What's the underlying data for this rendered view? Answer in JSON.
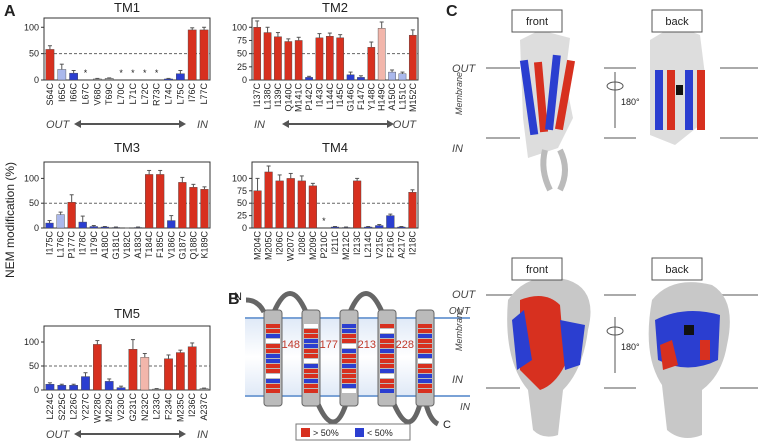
{
  "panel_labels": [
    "A",
    "B",
    "C"
  ],
  "shared_ylabel": "NEM modification (%)",
  "chart_data": [
    {
      "type": "bar",
      "title": "TM1",
      "categories": [
        "S64C",
        "I65C",
        "I66C",
        "L67C",
        "V68C",
        "T69C",
        "L70C",
        "L71C",
        "L72C",
        "R73C",
        "L74C",
        "L75C",
        "I76C",
        "L77C"
      ],
      "values": [
        58,
        20,
        13,
        null,
        2,
        3,
        null,
        null,
        null,
        null,
        2,
        12,
        95,
        95
      ],
      "errors": [
        7,
        10,
        5,
        null,
        1,
        1,
        null,
        null,
        null,
        null,
        1,
        6,
        4,
        5
      ],
      "colors": [
        "#d7301f",
        "#aab8ec",
        "#2b3ed0",
        "#999999",
        "#999999",
        "#999999",
        "#999999",
        "#999999",
        "#999999",
        "#999999",
        "#2b3ed0",
        "#2b3ed0",
        "#d7301f",
        "#d7301f"
      ],
      "notes": [
        null,
        null,
        null,
        "*",
        null,
        null,
        "*",
        "*",
        "*",
        "*",
        null,
        null,
        null,
        null
      ],
      "ylim": [
        0,
        110
      ],
      "yticks": [
        0,
        50,
        100
      ],
      "refline": 50,
      "direction": [
        "OUT",
        "IN"
      ]
    },
    {
      "type": "bar",
      "title": "TM2",
      "categories": [
        "I137C",
        "L138C",
        "I139C",
        "Q140C",
        "M141C",
        "P142C",
        "I143C",
        "L144C",
        "I145C",
        "G146C",
        "F147C",
        "Y148C",
        "H149C",
        "A150C",
        "L151C",
        "M152C"
      ],
      "values": [
        100,
        90,
        82,
        73,
        75,
        5,
        80,
        83,
        80,
        10,
        5,
        62,
        98,
        15,
        12,
        85
      ],
      "errors": [
        12,
        10,
        8,
        5,
        6,
        2,
        8,
        6,
        6,
        5,
        3,
        10,
        12,
        4,
        3,
        10
      ],
      "colors": [
        "#d7301f",
        "#d7301f",
        "#d7301f",
        "#d7301f",
        "#d7301f",
        "#2b3ed0",
        "#d7301f",
        "#d7301f",
        "#d7301f",
        "#2b3ed0",
        "#2b3ed0",
        "#d7301f",
        "#f2b6ab",
        "#aab8ec",
        "#aab8ec",
        "#d7301f"
      ],
      "ylim": [
        0,
        110
      ],
      "yticks": [
        0,
        25,
        50,
        75,
        100
      ],
      "refline": 50,
      "direction": [
        "IN",
        "OUT"
      ]
    },
    {
      "type": "bar",
      "title": "TM3",
      "categories": [
        "I175C",
        "L176C",
        "P177C",
        "I178C",
        "I179C",
        "A180C",
        "G181C",
        "V182C",
        "A183C",
        "T184C",
        "F185C",
        "V186C",
        "G187C",
        "Q188C",
        "K189C"
      ],
      "values": [
        10,
        27,
        52,
        12,
        3,
        2,
        1,
        0,
        1,
        108,
        108,
        15,
        92,
        82,
        78
      ],
      "errors": [
        5,
        5,
        15,
        12,
        2,
        1,
        1,
        0,
        1,
        8,
        8,
        10,
        10,
        6,
        5
      ],
      "colors": [
        "#2b3ed0",
        "#aab8ec",
        "#d7301f",
        "#2b3ed0",
        "#2b3ed0",
        "#2b3ed0",
        "#2b3ed0",
        "#2b3ed0",
        "#2b3ed0",
        "#d7301f",
        "#d7301f",
        "#2b3ed0",
        "#d7301f",
        "#d7301f",
        "#d7301f"
      ],
      "ylim": [
        0,
        125
      ],
      "yticks": [
        0,
        50,
        100
      ],
      "refline": 50
    },
    {
      "type": "bar",
      "title": "TM4",
      "categories": [
        "M204C",
        "M205C",
        "I206C",
        "W207C",
        "I208C",
        "M209C",
        "P210C",
        "I211C",
        "M212C",
        "I213C",
        "L214C",
        "V215C",
        "F216C",
        "A217C",
        "I218C"
      ],
      "values": [
        75,
        113,
        95,
        100,
        95,
        85,
        null,
        2,
        1,
        95,
        2,
        5,
        25,
        2,
        72
      ],
      "errors": [
        25,
        12,
        12,
        10,
        10,
        5,
        null,
        1,
        1,
        5,
        1,
        2,
        3,
        1,
        5
      ],
      "colors": [
        "#d7301f",
        "#d7301f",
        "#d7301f",
        "#d7301f",
        "#d7301f",
        "#d7301f",
        "#999999",
        "#2b3ed0",
        "#2b3ed0",
        "#d7301f",
        "#2b3ed0",
        "#2b3ed0",
        "#2b3ed0",
        "#2b3ed0",
        "#d7301f"
      ],
      "notes": [
        null,
        null,
        null,
        null,
        null,
        null,
        "*",
        null,
        null,
        null,
        null,
        null,
        null,
        null,
        null
      ],
      "ylim": [
        0,
        125
      ],
      "yticks": [
        0,
        25,
        50,
        75,
        100
      ],
      "refline": 50
    },
    {
      "type": "bar",
      "title": "TM5",
      "categories": [
        "L224C",
        "S225C",
        "L226C",
        "Y227C",
        "W228C",
        "M229C",
        "V230C",
        "G231C",
        "N232C",
        "L233C",
        "F234C",
        "M235C",
        "I236C",
        "A237C"
      ],
      "values": [
        12,
        10,
        10,
        28,
        95,
        18,
        5,
        85,
        68,
        2,
        65,
        78,
        90,
        3
      ],
      "errors": [
        3,
        2,
        2,
        8,
        8,
        5,
        3,
        20,
        8,
        1,
        8,
        5,
        8,
        1
      ],
      "colors": [
        "#2b3ed0",
        "#2b3ed0",
        "#2b3ed0",
        "#2b3ed0",
        "#d7301f",
        "#2b3ed0",
        "#2b3ed0",
        "#d7301f",
        "#f2b6ab",
        "#999999",
        "#d7301f",
        "#d7301f",
        "#d7301f",
        "#999999"
      ],
      "ylim": [
        0,
        125
      ],
      "yticks": [
        0,
        50,
        100
      ],
      "refline": 50,
      "direction": [
        "OUT",
        "IN"
      ]
    }
  ],
  "panel_b": {
    "n_label": "N",
    "c_label": "C",
    "out": "OUT",
    "in": "IN",
    "residues": [
      "148",
      "177",
      "213",
      "228"
    ],
    "legend": [
      "> 50%",
      "< 50%"
    ]
  },
  "panel_c": {
    "rows": [
      {
        "views": [
          "front",
          "back"
        ],
        "out": "OUT",
        "membrane": "Membrane",
        "in": "IN",
        "rotation": "180°"
      },
      {
        "views": [
          "front",
          "back"
        ],
        "out": "OUT",
        "membrane": "Membrane",
        "in": "IN",
        "rotation": "180°"
      }
    ]
  }
}
